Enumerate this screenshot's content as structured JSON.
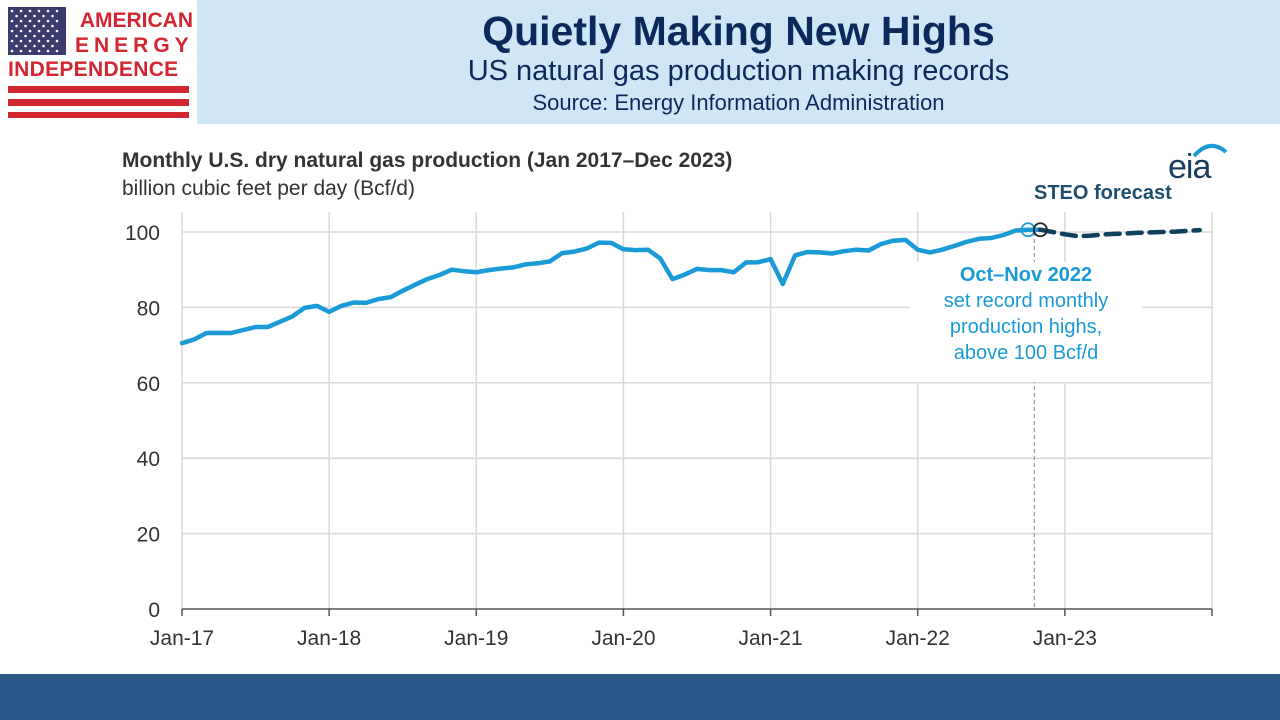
{
  "logo": {
    "line1": "AMERICAN",
    "line2": "ENERGY",
    "line3": "INDEPENDENCE",
    "flag_icon": "us-flag-icon"
  },
  "header": {
    "title": "Quietly Making New Highs",
    "subtitle": "US natural gas production making records",
    "source": "Source: Energy Information Administration"
  },
  "brand": {
    "eia": "eia"
  },
  "colors": {
    "header_band": "#cfe6f7",
    "title": "#0b2a5b",
    "historical_line": "#1a9ad6",
    "forecast_line": "#0e3f5c",
    "bottom_bar": "#29578a",
    "flag_red": "#d22630",
    "flag_blue": "#3c3b6e"
  },
  "chart_data": {
    "type": "line",
    "title": "Monthly U.S. dry natural gas production (Jan 2017–Dec 2023)",
    "ylabel": "billion cubic feet per day (Bcf/d)",
    "xlabel": "",
    "ylim": [
      0,
      100
    ],
    "yticks": [
      "0",
      "20",
      "40",
      "60",
      "80",
      "100"
    ],
    "xticks": [
      "Jan-17",
      "Jan-18",
      "Jan-19",
      "Jan-20",
      "Jan-21",
      "Jan-22",
      "Jan-23"
    ],
    "grid": true,
    "forecast_label": "STEO forecast",
    "annotation": {
      "heading": "Oct–Nov 2022",
      "line1": "set record monthly",
      "line2": "production highs,",
      "line3": "above 100 Bcf/d"
    },
    "series": [
      {
        "style": "historical",
        "x": [
          "2017-01",
          "2017-02",
          "2017-03",
          "2017-04",
          "2017-05",
          "2017-06",
          "2017-07",
          "2017-08",
          "2017-09",
          "2017-10",
          "2017-11",
          "2017-12",
          "2018-01",
          "2018-02",
          "2018-03",
          "2018-04",
          "2018-05",
          "2018-06",
          "2018-07",
          "2018-08",
          "2018-09",
          "2018-10",
          "2018-11",
          "2018-12",
          "2019-01",
          "2019-02",
          "2019-03",
          "2019-04",
          "2019-05",
          "2019-06",
          "2019-07",
          "2019-08",
          "2019-09",
          "2019-10",
          "2019-11",
          "2019-12",
          "2020-01",
          "2020-02",
          "2020-03",
          "2020-04",
          "2020-05",
          "2020-06",
          "2020-07",
          "2020-08",
          "2020-09",
          "2020-10",
          "2020-11",
          "2020-12",
          "2021-01",
          "2021-02",
          "2021-03",
          "2021-04",
          "2021-05",
          "2021-06",
          "2021-07",
          "2021-08",
          "2021-09",
          "2021-10",
          "2021-11",
          "2021-12",
          "2022-01",
          "2022-02",
          "2022-03",
          "2022-04",
          "2022-05",
          "2022-06",
          "2022-07",
          "2022-08",
          "2022-09",
          "2022-10",
          "2022-11"
        ],
        "values": [
          70.5,
          71.5,
          73.2,
          73.2,
          73.2,
          74.0,
          74.8,
          74.8,
          76.2,
          77.6,
          79.9,
          80.4,
          78.8,
          80.4,
          81.3,
          81.2,
          82.2,
          82.7,
          84.4,
          86.0,
          87.5,
          88.6,
          90.0,
          89.6,
          89.3,
          89.9,
          90.3,
          90.6,
          91.4,
          91.7,
          92.2,
          94.4,
          94.8,
          95.6,
          97.2,
          97.1,
          95.4,
          95.2,
          95.3,
          93.0,
          87.5,
          88.7,
          90.2,
          89.9,
          89.9,
          89.3,
          91.9,
          92.0,
          92.8,
          86.2,
          93.8,
          94.7,
          94.6,
          94.3,
          94.9,
          95.3,
          95.1,
          96.8,
          97.7,
          97.9,
          95.3,
          94.6,
          95.3,
          96.3,
          97.4,
          98.2,
          98.4,
          99.2,
          100.4,
          100.6,
          100.6
        ]
      },
      {
        "style": "forecast",
        "x": [
          "2022-11",
          "2022-12",
          "2023-01",
          "2023-02",
          "2023-03",
          "2023-04",
          "2023-05",
          "2023-06",
          "2023-07",
          "2023-08",
          "2023-09",
          "2023-10",
          "2023-11",
          "2023-12"
        ],
        "values": [
          100.6,
          100.0,
          99.4,
          98.9,
          99.0,
          99.3,
          99.5,
          99.6,
          99.8,
          99.9,
          100.0,
          100.1,
          100.3,
          100.5
        ]
      }
    ]
  }
}
